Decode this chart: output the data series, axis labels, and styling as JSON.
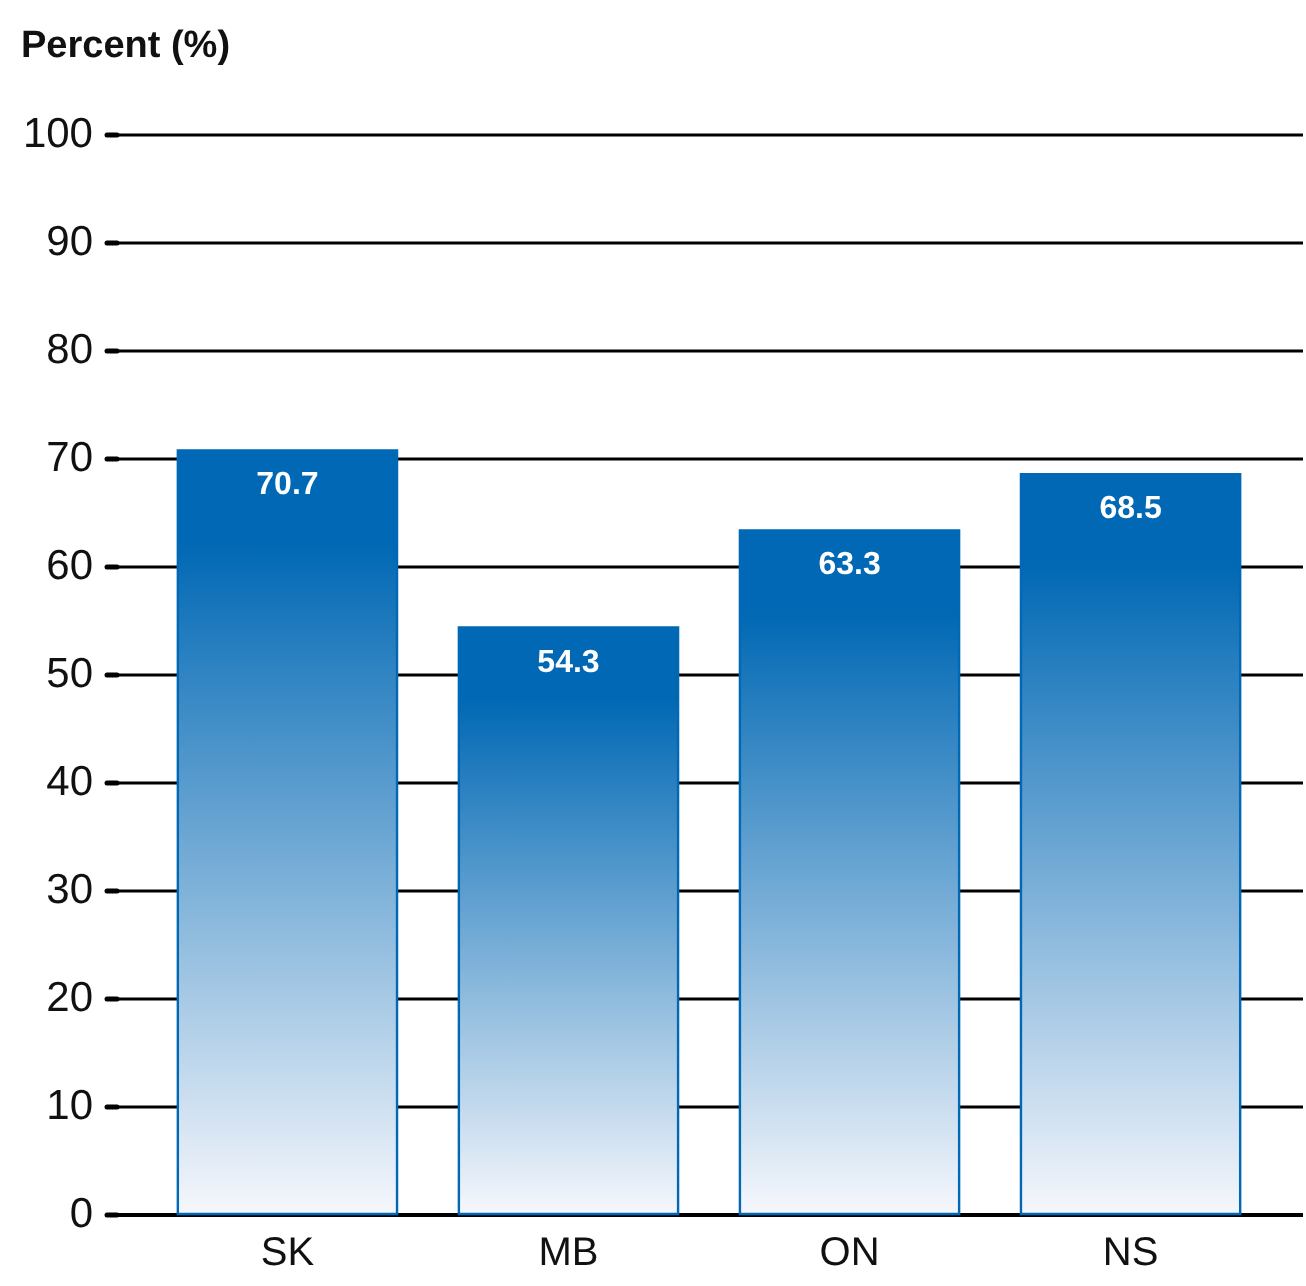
{
  "chart_data": {
    "type": "bar",
    "ylabel": "Percent (%)",
    "categories": [
      "SK",
      "MB",
      "ON",
      "NS"
    ],
    "values": [
      70.7,
      54.3,
      63.3,
      68.5
    ],
    "color": "#0068b4",
    "ylim": [
      0,
      100
    ],
    "yticks": [
      0,
      10,
      20,
      30,
      40,
      50,
      60,
      70,
      80,
      90,
      100
    ],
    "grid": "y",
    "data_labels": true
  }
}
